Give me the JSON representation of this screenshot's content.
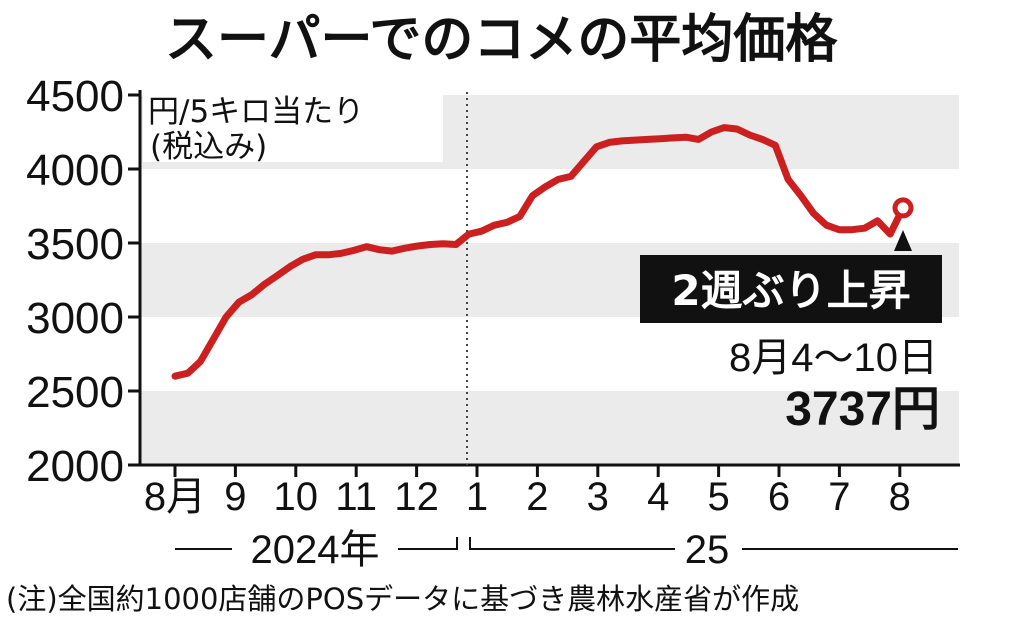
{
  "chart_data": {
    "type": "line",
    "title": "スーパーでのコメの平均価格",
    "unit_label_line1": "円/5キロ当たり",
    "unit_label_line2": "(税込み)",
    "ylim": [
      2000,
      4500
    ],
    "y_ticks": [
      "4500",
      "4000",
      "3500",
      "3000",
      "2500",
      "2000"
    ],
    "y_tick_values": [
      4500,
      4000,
      3500,
      3000,
      2500,
      2000
    ],
    "grid": "alternating horizontal bands",
    "x_ticks": [
      "8月",
      "9",
      "10",
      "11",
      "12",
      "1",
      "2",
      "3",
      "4",
      "5",
      "6",
      "7",
      "8"
    ],
    "year_labels": [
      "2024年",
      "25"
    ],
    "series": [
      {
        "color": "#cc1f1f",
        "values": [
          2600,
          2620,
          2700,
          2850,
          3000,
          3100,
          3150,
          3220,
          3280,
          3340,
          3390,
          3420,
          3420,
          3430,
          3450,
          3475,
          3455,
          3445,
          3465,
          3480,
          3490,
          3495,
          3490,
          3560,
          3580,
          3620,
          3640,
          3680,
          3820,
          3880,
          3930,
          3950,
          4050,
          4150,
          4180,
          4190,
          4195,
          4200,
          4205,
          4210,
          4215,
          4200,
          4250,
          4280,
          4270,
          4230,
          4200,
          4160,
          3930,
          3820,
          3700,
          3620,
          3590,
          3590,
          3600,
          3650,
          3560,
          3737
        ]
      }
    ],
    "callout": "2週ぶり上昇",
    "annotation_date": "8月4～10日",
    "annotation_value": "3737円",
    "note": "(注)全国約1000店舗のPOSデータに基づき農林水産省が作成"
  }
}
